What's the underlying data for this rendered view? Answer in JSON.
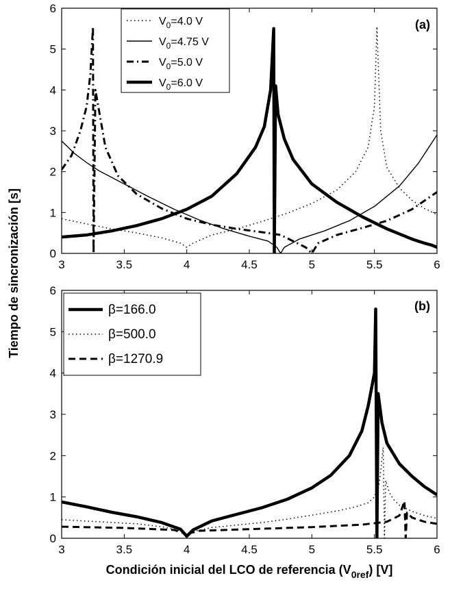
{
  "figure": {
    "ylabel": "Tiempo de sincronización  [s]",
    "xlabel_main": "Condición inicial del LCO de referencia (V",
    "xlabel_sub": "0ref",
    "xlabel_tail": ")  [V]"
  },
  "chart_data": [
    {
      "type": "line",
      "panel_label": "(a)",
      "xlim": [
        3,
        6
      ],
      "ylim": [
        0,
        6
      ],
      "xticks": [
        "3",
        "3.5",
        "4",
        "4.5",
        "5",
        "5.5",
        "6"
      ],
      "yticks": [
        "0",
        "1",
        "2",
        "3",
        "4",
        "5",
        "6"
      ],
      "legend_position": "top-center",
      "series": [
        {
          "name": "V0=4.0 V",
          "label_main": "V",
          "label_sub": "0",
          "label_tail": "=4.0 V",
          "style": "dotted",
          "width": 1.5,
          "x": [
            3.0,
            3.2,
            3.4,
            3.6,
            3.8,
            3.95,
            4.0,
            4.05,
            4.2,
            4.4,
            4.6,
            4.8,
            5.0,
            5.2,
            5.35,
            5.45,
            5.5,
            5.52,
            5.55,
            5.6,
            5.7,
            5.8,
            5.9,
            6.0
          ],
          "y": [
            0.85,
            0.72,
            0.6,
            0.5,
            0.38,
            0.25,
            0.15,
            0.25,
            0.45,
            0.6,
            0.78,
            0.98,
            1.22,
            1.55,
            2.0,
            2.6,
            3.6,
            5.55,
            3.0,
            2.1,
            1.6,
            1.3,
            1.1,
            0.95
          ]
        },
        {
          "name": "V0=4.75 V",
          "label_main": "V",
          "label_sub": "0",
          "label_tail": "=4.75 V",
          "style": "solid",
          "width": 1.4,
          "x": [
            3.0,
            3.1,
            3.2,
            3.3,
            3.5,
            3.7,
            3.9,
            4.1,
            4.3,
            4.5,
            4.65,
            4.72,
            4.75,
            4.78,
            4.9,
            5.1,
            5.3,
            5.5,
            5.7,
            5.85,
            6.0
          ],
          "y": [
            2.75,
            2.45,
            2.22,
            2.02,
            1.7,
            1.38,
            1.08,
            0.82,
            0.6,
            0.42,
            0.3,
            0.15,
            0.0,
            0.15,
            0.35,
            0.55,
            0.8,
            1.15,
            1.65,
            2.2,
            2.9
          ]
        },
        {
          "name": "V0=5.0 V",
          "label_main": "V",
          "label_sub": "0",
          "label_tail": "=5.0 V",
          "style": "dashdot",
          "width": 3,
          "x": [
            3.0,
            3.08,
            3.15,
            3.2,
            3.23,
            3.25,
            3.255,
            3.27,
            3.35,
            3.45,
            3.6,
            3.8,
            4.0,
            4.2,
            4.4,
            4.6,
            4.75,
            4.85,
            4.95,
            5.0,
            5.05,
            5.2,
            5.4,
            5.6,
            5.8,
            6.0
          ],
          "y": [
            2.05,
            2.4,
            3.0,
            3.6,
            4.4,
            5.55,
            0.0,
            4.0,
            2.6,
            1.9,
            1.45,
            1.1,
            0.85,
            0.7,
            0.6,
            0.52,
            0.45,
            0.3,
            0.15,
            0.0,
            0.25,
            0.45,
            0.62,
            0.8,
            1.08,
            1.5
          ]
        },
        {
          "name": "V0=6.0 V",
          "label_main": "V",
          "label_sub": "0",
          "label_tail": "=6.0 V",
          "style": "solid",
          "width": 4.5,
          "x": [
            3.0,
            3.2,
            3.4,
            3.6,
            3.8,
            4.0,
            4.2,
            4.4,
            4.55,
            4.62,
            4.67,
            4.695,
            4.7,
            4.71,
            4.73,
            4.78,
            4.85,
            5.0,
            5.2,
            5.4,
            5.6,
            5.8,
            5.9,
            5.96,
            6.0
          ],
          "y": [
            0.4,
            0.45,
            0.55,
            0.68,
            0.85,
            1.08,
            1.4,
            1.95,
            2.6,
            3.1,
            4.0,
            5.5,
            0.0,
            4.1,
            3.4,
            2.8,
            2.3,
            1.7,
            1.25,
            0.9,
            0.6,
            0.35,
            0.25,
            0.2,
            0.15
          ]
        }
      ]
    },
    {
      "type": "line",
      "panel_label": "(b)",
      "xlim": [
        3,
        6
      ],
      "ylim": [
        0,
        6
      ],
      "xticks": [
        "3",
        "3.5",
        "4",
        "4.5",
        "5",
        "5.5",
        "6"
      ],
      "yticks": [
        "0",
        "1",
        "2",
        "3",
        "4",
        "5",
        "6"
      ],
      "legend_position": "top-left",
      "series": [
        {
          "name": "β=166.0",
          "label_main": "β=166.0",
          "label_sub": "",
          "label_tail": "",
          "style": "solid",
          "width": 4.5,
          "x": [
            3.0,
            3.2,
            3.4,
            3.6,
            3.8,
            3.95,
            4.0,
            4.05,
            4.2,
            4.4,
            4.6,
            4.8,
            5.0,
            5.15,
            5.3,
            5.4,
            5.45,
            5.5,
            5.51,
            5.52,
            5.53,
            5.56,
            5.6,
            5.7,
            5.8,
            5.9,
            6.0
          ],
          "y": [
            0.88,
            0.76,
            0.63,
            0.52,
            0.38,
            0.22,
            0.05,
            0.2,
            0.42,
            0.58,
            0.74,
            0.94,
            1.22,
            1.52,
            2.0,
            2.6,
            3.2,
            4.0,
            5.55,
            0.0,
            3.5,
            2.8,
            2.3,
            1.8,
            1.5,
            1.25,
            1.05
          ]
        },
        {
          "name": "β=500.0",
          "label_main": "β=500.0",
          "label_sub": "",
          "label_tail": "",
          "style": "dotted",
          "width": 1.5,
          "x": [
            3.0,
            3.3,
            3.6,
            3.8,
            3.95,
            4.0,
            4.05,
            4.2,
            4.4,
            4.6,
            4.8,
            5.0,
            5.2,
            5.35,
            5.45,
            5.5,
            5.54,
            5.57,
            5.58,
            5.59,
            5.62,
            5.65,
            5.7,
            5.8,
            5.9,
            6.0
          ],
          "y": [
            0.45,
            0.4,
            0.35,
            0.28,
            0.18,
            0.05,
            0.16,
            0.26,
            0.32,
            0.38,
            0.46,
            0.56,
            0.66,
            0.76,
            0.86,
            1.0,
            1.35,
            2.2,
            0.0,
            1.4,
            1.1,
            0.95,
            0.8,
            0.65,
            0.55,
            0.48
          ]
        },
        {
          "name": "β=1270.9",
          "label_main": "β=1270.9",
          "label_sub": "",
          "label_tail": "",
          "style": "dashed",
          "width": 3,
          "x": [
            3.0,
            3.5,
            3.9,
            3.98,
            4.0,
            4.02,
            4.1,
            4.5,
            5.0,
            5.4,
            5.6,
            5.7,
            5.74,
            5.75,
            5.76,
            5.8,
            5.9,
            6.0
          ],
          "y": [
            0.28,
            0.25,
            0.2,
            0.12,
            0.02,
            0.12,
            0.18,
            0.22,
            0.27,
            0.33,
            0.4,
            0.55,
            0.9,
            0.0,
            0.62,
            0.5,
            0.4,
            0.35
          ]
        }
      ]
    }
  ]
}
